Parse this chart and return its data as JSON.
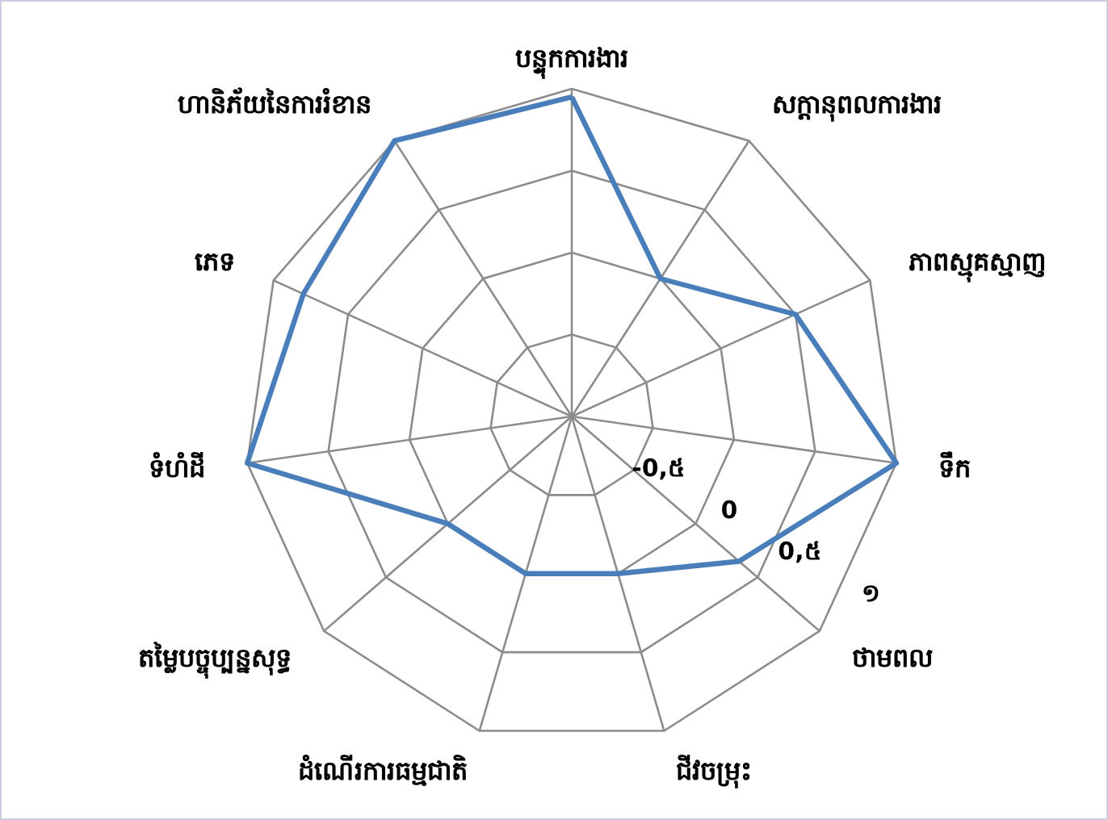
{
  "chart_data": {
    "type": "radar",
    "categories": [
      "បន្ទុកការងារ",
      "សក្តានុពលការងារ",
      "ភាពស្មុគស្មាញ",
      "ទឹក",
      "ថាមពល",
      "ជីវចម្រុះ",
      "ដំណើរការធម្មជាតិ",
      "តម្លៃបច្ចុប្បន្នសុទ្ធ",
      "ទំហំដី",
      "ភេទ",
      "ហានិភ័យនៃការរំខាន"
    ],
    "series": [
      {
        "color": "#4a7ebb",
        "values": [
          0.95,
          0,
          0.5,
          1,
          0.35,
          0,
          0,
          0,
          1,
          0.8,
          1
        ]
      }
    ],
    "ylim": [
      -1,
      1
    ],
    "yticks": [
      {
        "value": -0.5,
        "label": "-0,៥"
      },
      0,
      {
        "value": 0.5,
        "label": "0,៥"
      },
      {
        "value": 1,
        "label": "១"
      }
    ],
    "grid": true,
    "marker": "none",
    "line_style": "solid"
  }
}
